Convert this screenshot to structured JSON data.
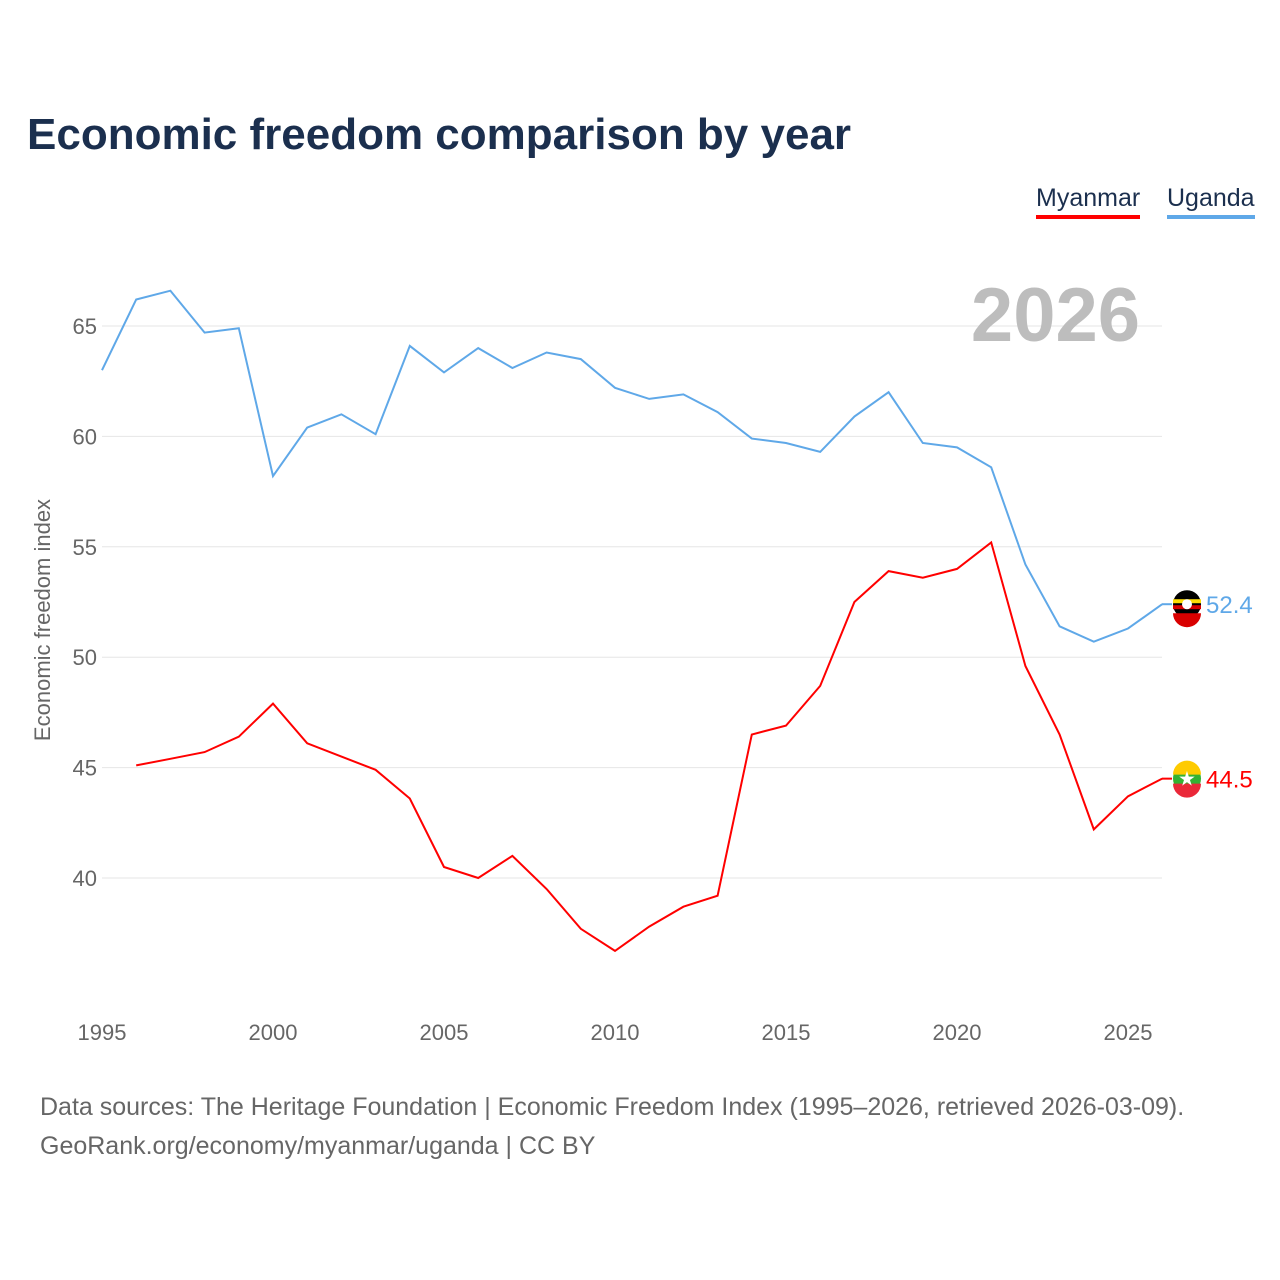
{
  "chart_data": {
    "type": "line",
    "title": "Economic freedom comparison by year",
    "ylabel": "Economic freedom index",
    "xlabel": "",
    "year_label": "2026",
    "xlim": [
      1995,
      2026
    ],
    "ylim": [
      34.5,
      67
    ],
    "xticks": [
      1995,
      2000,
      2005,
      2010,
      2015,
      2020,
      2025
    ],
    "yticks": [
      40,
      45,
      50,
      55,
      60,
      65
    ],
    "grid": true,
    "legend_position": "top-right",
    "series": [
      {
        "name": "Myanmar",
        "color": "#ff0000",
        "end_label": "44.5",
        "x": [
          1996,
          1997,
          1998,
          1999,
          2000,
          2001,
          2002,
          2003,
          2004,
          2005,
          2006,
          2007,
          2008,
          2009,
          2010,
          2011,
          2012,
          2013,
          2014,
          2015,
          2016,
          2017,
          2018,
          2019,
          2020,
          2021,
          2022,
          2023,
          2024,
          2025,
          2026
        ],
        "values": [
          45.1,
          45.4,
          45.7,
          46.4,
          47.9,
          46.1,
          45.5,
          44.9,
          43.6,
          40.5,
          40.0,
          41.0,
          39.5,
          37.7,
          36.7,
          37.8,
          38.7,
          39.2,
          46.5,
          46.9,
          48.7,
          52.5,
          53.9,
          53.6,
          54.0,
          55.2,
          49.6,
          46.5,
          42.2,
          43.7,
          44.5
        ]
      },
      {
        "name": "Uganda",
        "color": "#5fa8e8",
        "end_label": "52.4",
        "x": [
          1995,
          1996,
          1997,
          1998,
          1999,
          2000,
          2001,
          2002,
          2003,
          2004,
          2005,
          2006,
          2007,
          2008,
          2009,
          2010,
          2011,
          2012,
          2013,
          2014,
          2015,
          2016,
          2017,
          2018,
          2019,
          2020,
          2021,
          2022,
          2023,
          2024,
          2025,
          2026
        ],
        "values": [
          63.0,
          66.2,
          66.6,
          64.7,
          64.9,
          58.2,
          60.4,
          61.0,
          60.1,
          64.1,
          62.9,
          64.0,
          63.1,
          63.8,
          63.5,
          62.2,
          61.7,
          61.9,
          61.1,
          59.9,
          59.7,
          59.3,
          60.9,
          62.0,
          59.7,
          59.5,
          58.6,
          54.2,
          51.4,
          50.7,
          51.3,
          52.4
        ]
      }
    ]
  },
  "source": {
    "line1": "Data sources: The Heritage Foundation | Economic Freedom Index (1995–2026, retrieved 2026-03-09).",
    "line2": "GeoRank.org/economy/myanmar/uganda | CC BY"
  }
}
